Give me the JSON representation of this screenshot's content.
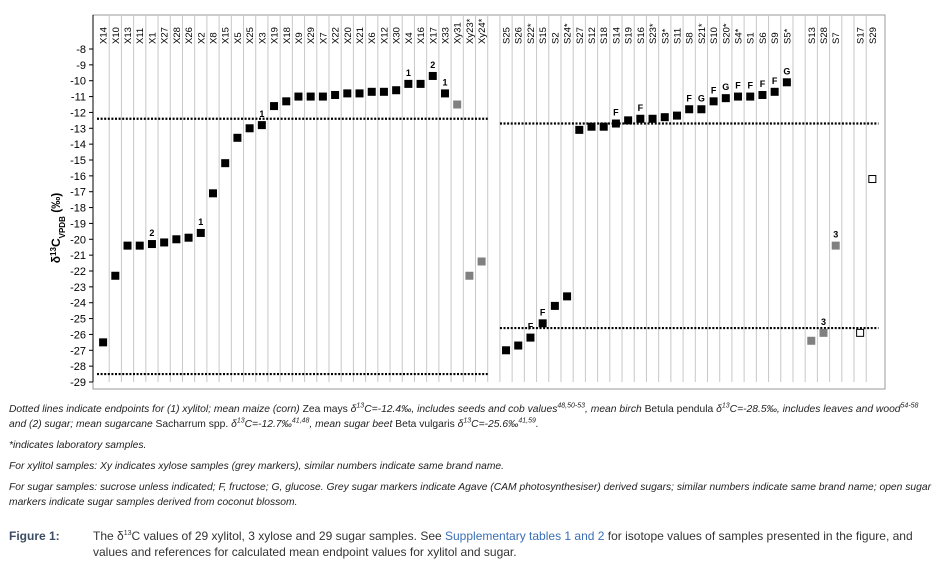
{
  "chart_data": {
    "type": "scatter",
    "y_label": [
      "δ",
      {
        "text": "13",
        "style": "sup"
      },
      "C",
      {
        "text": "VPDB",
        "style": "sub"
      },
      " (‰)"
    ],
    "categories": [
      "X14",
      "X10",
      "X13",
      "X11",
      "X1",
      "X27",
      "X28",
      "X26",
      "X2",
      "X8",
      "X15",
      "X5",
      "X25",
      "X3",
      "X19",
      "X18",
      "X9",
      "X29",
      "X7",
      "X22",
      "X20",
      "X21",
      "X6",
      "X12",
      "X30",
      "X4",
      "X16",
      "X17",
      "X33",
      "Xy31",
      "Xy23*",
      "Xy24*",
      null,
      "S25",
      "S26",
      "S22*",
      "S15",
      "S2",
      "S24*",
      "S27",
      "S12",
      "S18",
      "S14",
      "S19",
      "S16",
      "S23*",
      "S3*",
      "S11",
      "S8",
      "S21*",
      "S10",
      "S20*",
      "S4*",
      "S1",
      "S6",
      "S9",
      "S5*",
      null,
      "S13",
      "S28",
      "S7",
      null,
      "S17",
      "S29"
    ],
    "values": [
      -26.5,
      -22.3,
      -20.4,
      -20.4,
      -20.3,
      -20.2,
      -20.0,
      -19.9,
      -19.6,
      -17.1,
      -15.2,
      -13.6,
      -13.0,
      -12.8,
      -11.6,
      -11.3,
      -11.0,
      -11.0,
      -11.0,
      -10.9,
      -10.8,
      -10.8,
      -10.7,
      -10.7,
      -10.6,
      -10.2,
      -10.2,
      -9.7,
      -10.8,
      -11.5,
      -22.3,
      -21.4,
      null,
      -27.0,
      -26.7,
      -26.2,
      -25.3,
      -24.2,
      -23.6,
      -13.1,
      -12.9,
      -12.9,
      -12.7,
      -12.5,
      -12.4,
      -12.4,
      -12.3,
      -12.2,
      -11.8,
      -11.8,
      -11.3,
      -11.1,
      -11.0,
      -11.0,
      -10.9,
      -10.7,
      -10.1,
      null,
      -26.4,
      -25.9,
      -20.4,
      null,
      -25.9,
      -16.2
    ],
    "colors": [
      "#000000",
      "#000000",
      "#000000",
      "#000000",
      "#000000",
      "#000000",
      "#000000",
      "#000000",
      "#000000",
      "#000000",
      "#000000",
      "#000000",
      "#000000",
      "#000000",
      "#000000",
      "#000000",
      "#000000",
      "#000000",
      "#000000",
      "#000000",
      "#000000",
      "#000000",
      "#000000",
      "#000000",
      "#000000",
      "#000000",
      "#000000",
      "#000000",
      "#000000",
      "#808080",
      "#808080",
      "#808080",
      null,
      "#000000",
      "#000000",
      "#000000",
      "#000000",
      "#000000",
      "#000000",
      "#000000",
      "#000000",
      "#000000",
      "#000000",
      "#000000",
      "#000000",
      "#000000",
      "#000000",
      "#000000",
      "#000000",
      "#000000",
      "#000000",
      "#000000",
      "#000000",
      "#000000",
      "#000000",
      "#000000",
      "#000000",
      null,
      "#808080",
      "#808080",
      "#808080",
      null,
      "#ffffff",
      "#ffffff"
    ],
    "point_labels": [
      null,
      null,
      null,
      null,
      "2",
      null,
      null,
      null,
      "1",
      null,
      null,
      null,
      null,
      "1",
      null,
      null,
      null,
      null,
      null,
      null,
      null,
      null,
      null,
      null,
      null,
      "1",
      null,
      "2",
      "1",
      null,
      null,
      null,
      null,
      null,
      null,
      "F",
      "F",
      null,
      null,
      null,
      null,
      null,
      "F",
      null,
      "F",
      null,
      null,
      null,
      "F",
      "G",
      "F",
      "G",
      "F",
      "F",
      "F",
      "F",
      "G",
      null,
      null,
      "3",
      "3",
      null,
      null,
      null
    ],
    "reference_lines": [
      {
        "value": -12.4,
        "from": "X14",
        "to": "Xy24*"
      },
      {
        "value": -28.5,
        "from": "X14",
        "to": "Xy24*"
      },
      {
        "value": -12.7,
        "from": "S25",
        "to": "S29"
      },
      {
        "value": -25.6,
        "from": "S25",
        "to": "S29"
      }
    ],
    "ylim": [
      -29,
      -8
    ],
    "yticks": [
      -8,
      -9,
      -10,
      -11,
      -12,
      -13,
      -14,
      -15,
      -16,
      -17,
      -18,
      -19,
      -20,
      -21,
      -22,
      -23,
      -24,
      -25,
      -26,
      -27,
      -28,
      -29
    ]
  },
  "notes": [
    [
      "Dotted lines indicate endpoints for (1) xylitol; mean maize (corn) ",
      {
        "text": "Zea mays",
        "style": "roman"
      },
      " δ",
      {
        "text": "13",
        "style": "sup"
      },
      "C=-12.4‰, includes seeds and cob values",
      {
        "text": "48,50-53",
        "style": "sup"
      },
      ", mean birch ",
      {
        "text": "Betula pendula",
        "style": "roman"
      },
      " δ",
      {
        "text": "13",
        "style": "sup"
      },
      "C=-28.5‰, includes leaves and wood",
      {
        "text": "54-58",
        "style": "sup"
      },
      " and (2) sugar; mean sugarcane ",
      {
        "text": "Sacharrum spp.",
        "style": "roman"
      },
      " δ",
      {
        "text": "13",
        "style": "sup"
      },
      "C=-12.7‰",
      {
        "text": "41,48",
        "style": "sup"
      },
      ", mean sugar beet ",
      {
        "text": "Beta vulgaris",
        "style": "roman"
      },
      " δ",
      {
        "text": "13",
        "style": "sup"
      },
      "C=-25.6‰",
      {
        "text": "41,59",
        "style": "sup"
      },
      "."
    ],
    [
      "*indicates laboratory samples."
    ],
    [
      "For xylitol samples: Xy indicates xylose samples (grey markers), similar numbers indicate same brand name."
    ],
    [
      "For sugar samples: sucrose unless indicated; F, fructose; G, glucose. Grey sugar markers indicate Agave (CAM photosynthesiser) derived sugars; similar numbers indicate same brand name; open sugar markers indicate sugar samples derived from coconut blossom."
    ]
  ],
  "figure": {
    "label": "Figure 1:",
    "caption": [
      "The δ",
      {
        "text": "13",
        "style": "sup"
      },
      "C values of 29 xylitol, 3 xylose and 29 sugar samples. See ",
      {
        "text": "Supplementary tables 1 and 2",
        "style": "link"
      },
      " for isotope values of samples presented in the figure, and values and references for calculated mean endpoint values for xylitol and sugar."
    ]
  }
}
